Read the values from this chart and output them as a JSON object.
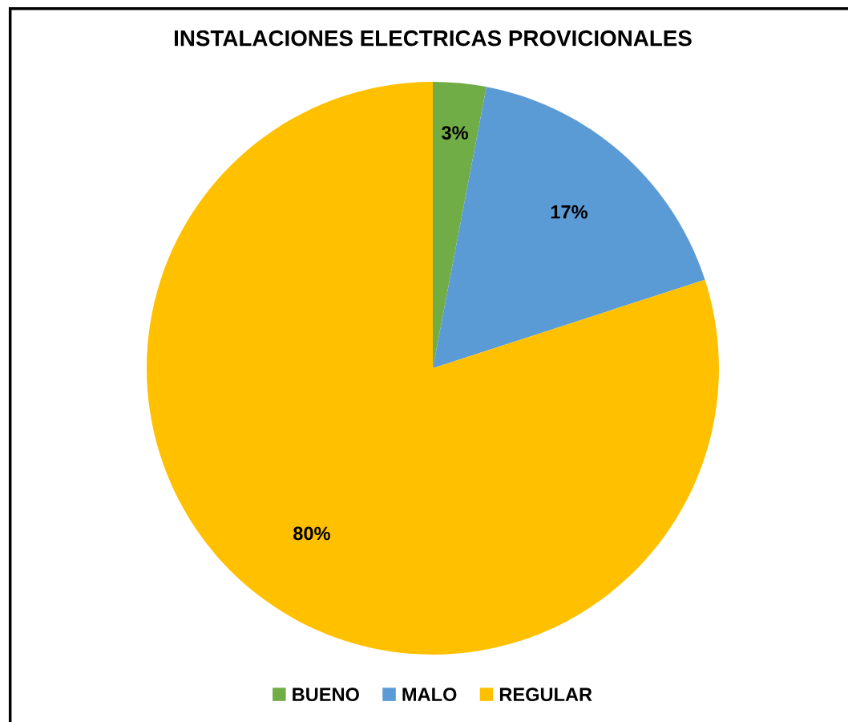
{
  "chart_data": {
    "type": "pie",
    "title": "INSTALACIONES ELECTRICAS PROVICIONALES",
    "categories": [
      "BUENO",
      "MALO",
      "REGULAR"
    ],
    "values": [
      3,
      17,
      80
    ],
    "colors": [
      "#70ad47",
      "#5b9bd5",
      "#ffc000"
    ],
    "value_labels": [
      "3%",
      "17%",
      "80%"
    ],
    "legend": "bottom"
  }
}
